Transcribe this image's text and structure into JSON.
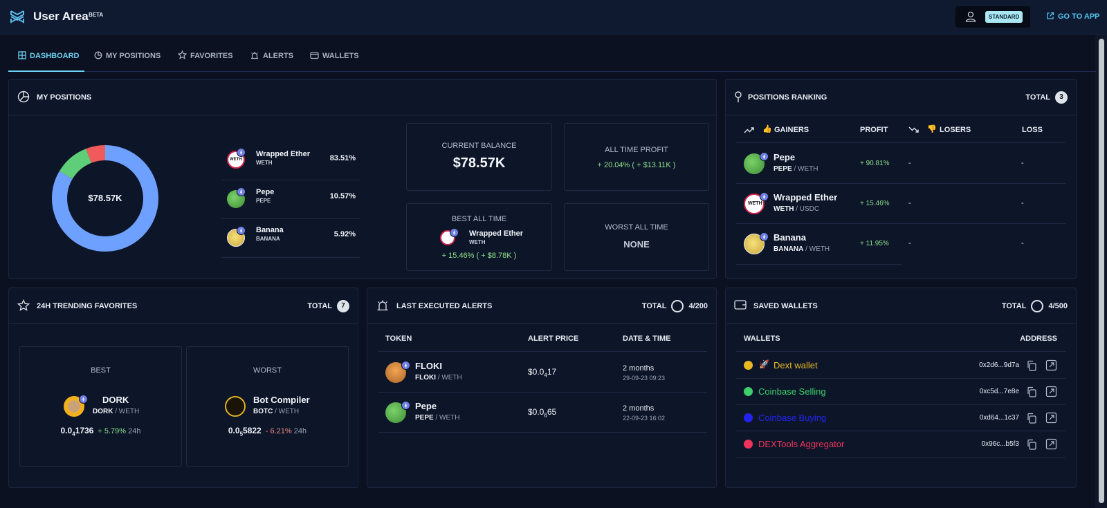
{
  "header": {
    "brand": "User Area",
    "beta": "BETA",
    "plan_badge": "STANDARD",
    "go_to_app": "GO TO APP"
  },
  "tabs": [
    {
      "label": "DASHBOARD",
      "icon": "grid-icon",
      "active": true
    },
    {
      "label": "MY POSITIONS",
      "icon": "pie-icon",
      "active": false
    },
    {
      "label": "FAVORITES",
      "icon": "star-icon",
      "active": false
    },
    {
      "label": "ALERTS",
      "icon": "alarm-icon",
      "active": false
    },
    {
      "label": "WALLETS",
      "icon": "wallet-icon",
      "active": false
    }
  ],
  "positions": {
    "title": "MY POSITIONS",
    "donut_total": "$78.57K",
    "slices": [
      {
        "name": "Wrapped Ether",
        "symbol": "WETH",
        "share": 83.51,
        "label": "83.51%",
        "color": "#6ea1ff"
      },
      {
        "name": "Pepe",
        "symbol": "PEPE",
        "share": 10.57,
        "label": "10.57%",
        "color": "#5fce78"
      },
      {
        "name": "Banana",
        "symbol": "BANANA",
        "share": 5.92,
        "label": "5.92%",
        "color": "#f05a5a"
      }
    ],
    "current_balance_label": "CURRENT BALANCE",
    "current_balance": "$78.57K",
    "all_time_profit_label": "ALL TIME PROFIT",
    "all_time_profit": "+ 20.04% ( + $13.11K )",
    "best_label": "BEST ALL TIME",
    "best_name": "Wrapped Ether",
    "best_symbol": "WETH",
    "best_value": "+ 15.46% ( + $8.78K )",
    "worst_label": "WORST ALL TIME",
    "worst_value": "NONE"
  },
  "ranking": {
    "title": "POSITIONS RANKING",
    "total_label": "TOTAL",
    "total": "3",
    "col_gainers": "GAINERS",
    "col_profit": "PROFIT",
    "col_losers": "LOSERS",
    "col_loss": "LOSS",
    "rows": [
      {
        "name": "Pepe",
        "pair_base": "PEPE",
        "pair_quote": "/ WETH",
        "profit": "+ 90.81%",
        "loser": "-",
        "loss": "-"
      },
      {
        "name": "Wrapped Ether",
        "pair_base": "WETH",
        "pair_quote": "/ USDC",
        "profit": "+ 15.46%",
        "loser": "-",
        "loss": "-"
      },
      {
        "name": "Banana",
        "pair_base": "BANANA",
        "pair_quote": "/ WETH",
        "profit": "+ 11.95%",
        "loser": "-",
        "loss": "-"
      }
    ]
  },
  "trending": {
    "title": "24H TRENDING FAVORITES",
    "total_label": "TOTAL",
    "total": "7",
    "best_label": "BEST",
    "best_name": "DORK",
    "best_base": "DORK",
    "best_quote": "/ WETH",
    "best_price_prefix": "0.0",
    "best_price_sub": "4",
    "best_price_suffix": "1736",
    "best_change": "+ 5.79%",
    "best_period": "24h",
    "worst_label": "WORST",
    "worst_name": "Bot Compiler",
    "worst_base": "BOTC",
    "worst_quote": "/ WETH",
    "worst_price_prefix": "0.0",
    "worst_price_sub": "5",
    "worst_price_suffix": "5822",
    "worst_change": "- 6.21%",
    "worst_period": "24h"
  },
  "alerts": {
    "title": "LAST EXECUTED ALERTS",
    "total_label": "TOTAL",
    "total": "4/200",
    "col_token": "TOKEN",
    "col_price": "ALERT PRICE",
    "col_date": "DATE & TIME",
    "rows": [
      {
        "name": "FLOKI",
        "base": "FLOKI",
        "quote": "/ WETH",
        "price_prefix": "$0.0",
        "price_sub": "4",
        "price_suffix": "17",
        "ago": "2 months",
        "date": "29-09-23 09:23"
      },
      {
        "name": "Pepe",
        "base": "PEPE",
        "quote": "/ WETH",
        "price_prefix": "$0.0",
        "price_sub": "6",
        "price_suffix": "65",
        "ago": "2 months",
        "date": "22-09-23 16:02"
      }
    ]
  },
  "wallets": {
    "title": "SAVED WALLETS",
    "total_label": "TOTAL",
    "total": "4/500",
    "col_wallets": "WALLETS",
    "col_address": "ADDRESS",
    "rows": [
      {
        "name": "Dext wallet",
        "emoji": "🚀",
        "address": "0x2d6...9d7a",
        "color": "#e8b923"
      },
      {
        "name": "Coinbase Selling",
        "emoji": "",
        "address": "0xc5d...7e8e",
        "color": "#3ccf6a"
      },
      {
        "name": "Coinbase Buying",
        "emoji": "",
        "address": "0xd64...1c37",
        "color": "#2323f0"
      },
      {
        "name": "DEXTools Aggregator",
        "emoji": "",
        "address": "0x96c...b5f3",
        "color": "#f0335a"
      }
    ]
  }
}
